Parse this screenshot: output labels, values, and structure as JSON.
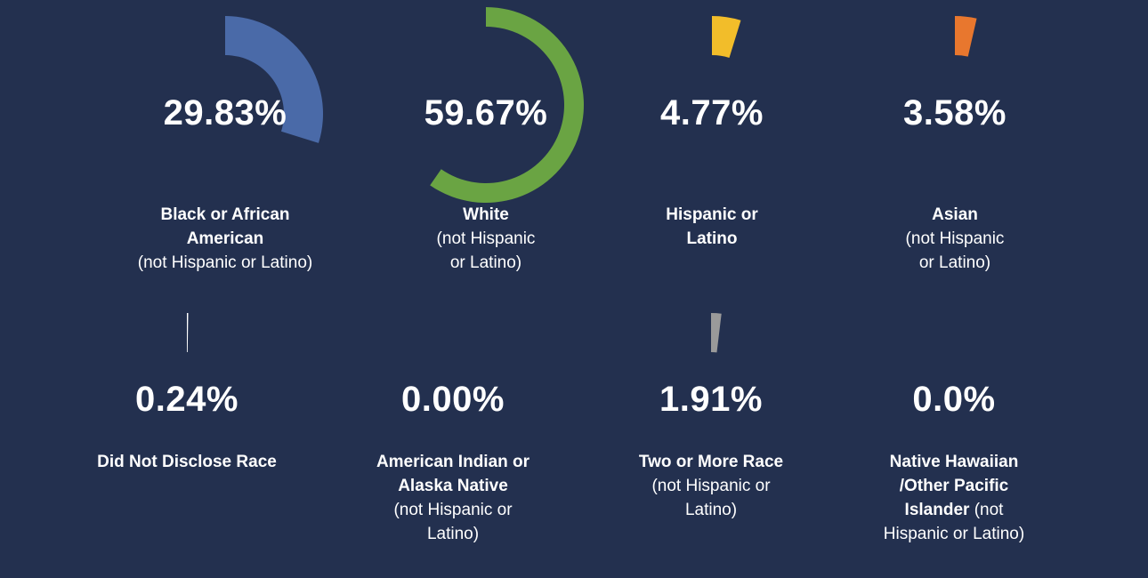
{
  "chart_data": [
    {
      "type": "donut",
      "value": 29.83,
      "value_label": "29.83%",
      "color": "#4a6aa8",
      "label_lines": [
        {
          "text": "Black or African",
          "bold": true
        },
        {
          "text": "American",
          "bold": true
        },
        {
          "text": "(not Hispanic or Latino)",
          "bold": false
        }
      ]
    },
    {
      "type": "donut",
      "value": 59.67,
      "value_label": "59.67%",
      "color": "#6aa443",
      "label_lines": [
        {
          "text": "White",
          "bold": true
        },
        {
          "text": "(not Hispanic",
          "bold": false
        },
        {
          "text": "or Latino)",
          "bold": false
        }
      ]
    },
    {
      "type": "donut",
      "value": 4.77,
      "value_label": "4.77%",
      "color": "#f2bd2a",
      "label_lines": [
        {
          "text": "Hispanic or",
          "bold": true
        },
        {
          "text": "Latino",
          "bold": true
        }
      ]
    },
    {
      "type": "donut",
      "value": 3.58,
      "value_label": "3.58%",
      "color": "#e8772e",
      "label_lines": [
        {
          "text": "Asian",
          "bold": true
        },
        {
          "text": "(not Hispanic",
          "bold": false
        },
        {
          "text": "or Latino)",
          "bold": false
        }
      ]
    },
    {
      "type": "donut",
      "value": 0.24,
      "value_label": "0.24%",
      "color": "#ffffff",
      "label_lines": [
        {
          "text": "Did Not Disclose Race",
          "bold": true
        }
      ]
    },
    {
      "type": "donut",
      "value": 0.0,
      "value_label": "0.00%",
      "color": "#ffffff",
      "label_lines": [
        {
          "text": "American Indian or",
          "bold": true
        },
        {
          "text": "Alaska Native",
          "bold": true
        },
        {
          "text": "(not Hispanic or",
          "bold": false
        },
        {
          "text": "Latino)",
          "bold": false
        }
      ]
    },
    {
      "type": "donut",
      "value": 1.91,
      "value_label": "1.91%",
      "color": "#9a9a9a",
      "label_lines": [
        {
          "text": "Two or More Race",
          "bold": true
        },
        {
          "text": "(not Hispanic or",
          "bold": false
        },
        {
          "text": "Latino)",
          "bold": false
        }
      ]
    },
    {
      "type": "donut",
      "value": 0.0,
      "value_label": "0.0%",
      "color": "#ffffff",
      "label_lines": [
        {
          "text": "Native Hawaiian",
          "bold": true
        },
        {
          "text": "/Other Pacific",
          "bold": true
        },
        {
          "text": "Islander",
          "bold": true,
          "inline_next": true
        },
        {
          "text": " (not",
          "bold": false
        },
        {
          "text": "Hispanic or Latino)",
          "bold": false
        }
      ]
    }
  ]
}
